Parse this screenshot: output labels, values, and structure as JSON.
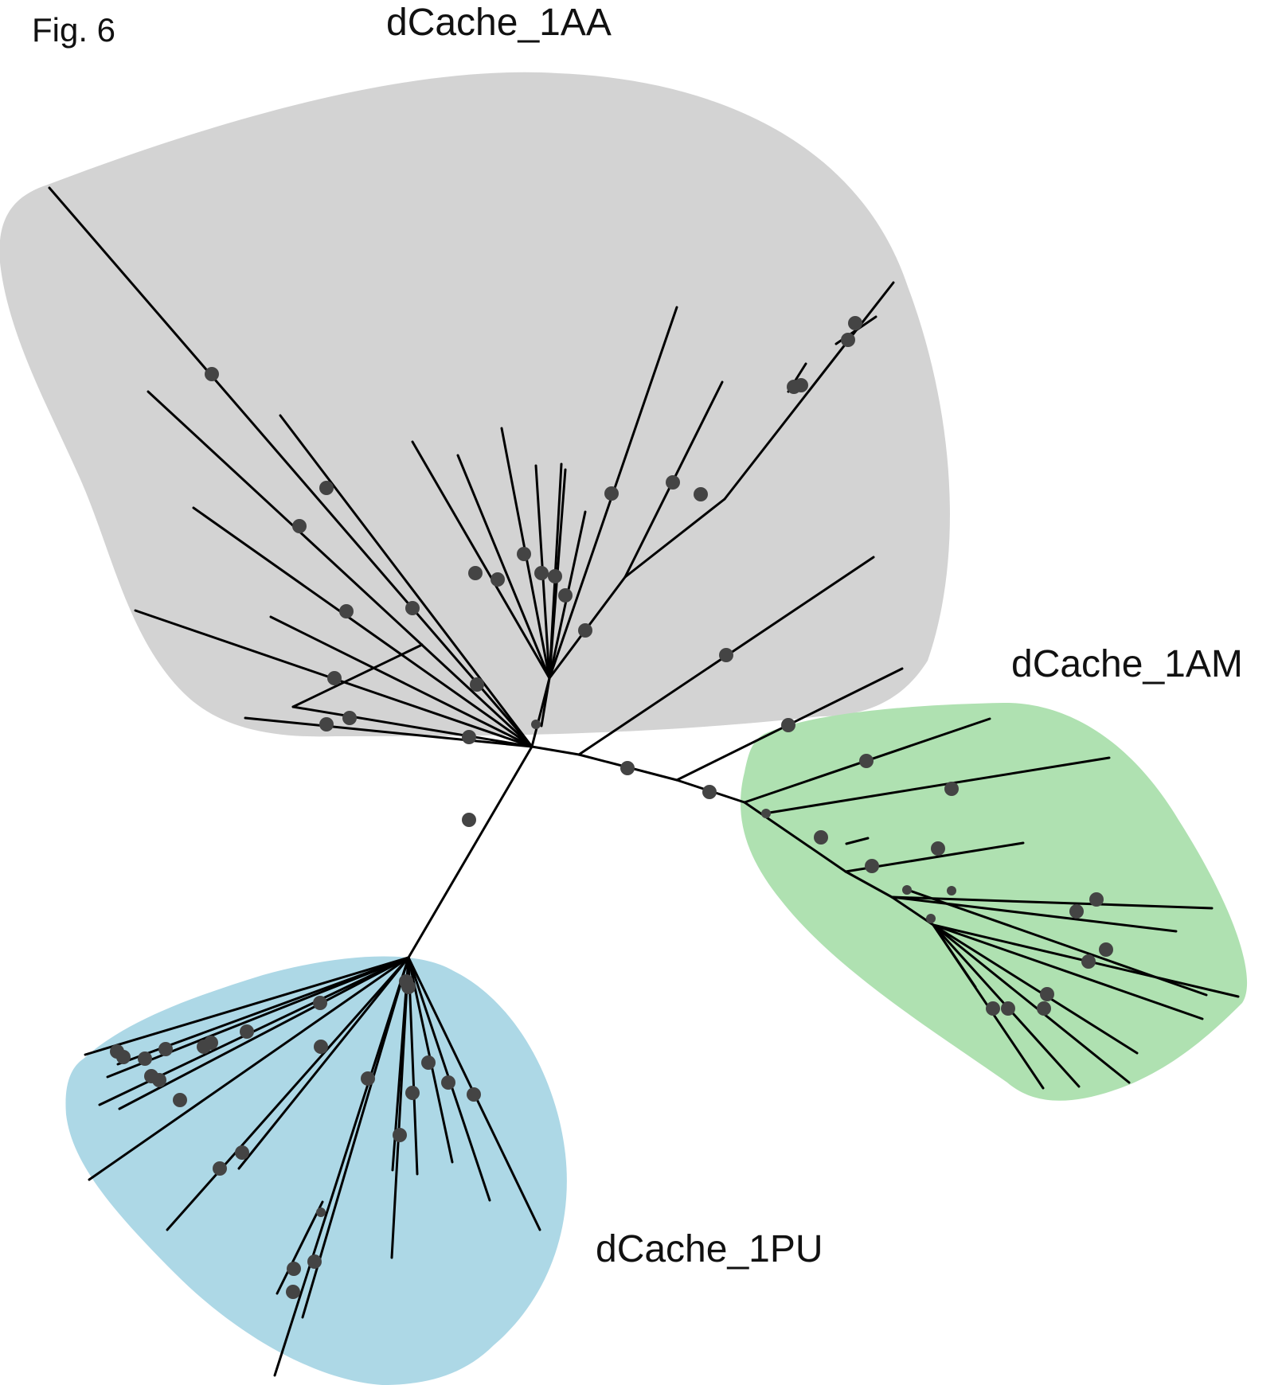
{
  "figure_label": "Fig. 6",
  "clades": [
    {
      "id": "1AA",
      "name": "dCache_1AA",
      "color": "#d3d3d3"
    },
    {
      "id": "1AM",
      "name": "dCache_1AM",
      "color": "#afe1b1"
    },
    {
      "id": "1PU",
      "name": "dCache_1PU",
      "color": "#add8e6"
    }
  ],
  "style": {
    "branch_color": "#000000",
    "node_color": "#444444"
  }
}
